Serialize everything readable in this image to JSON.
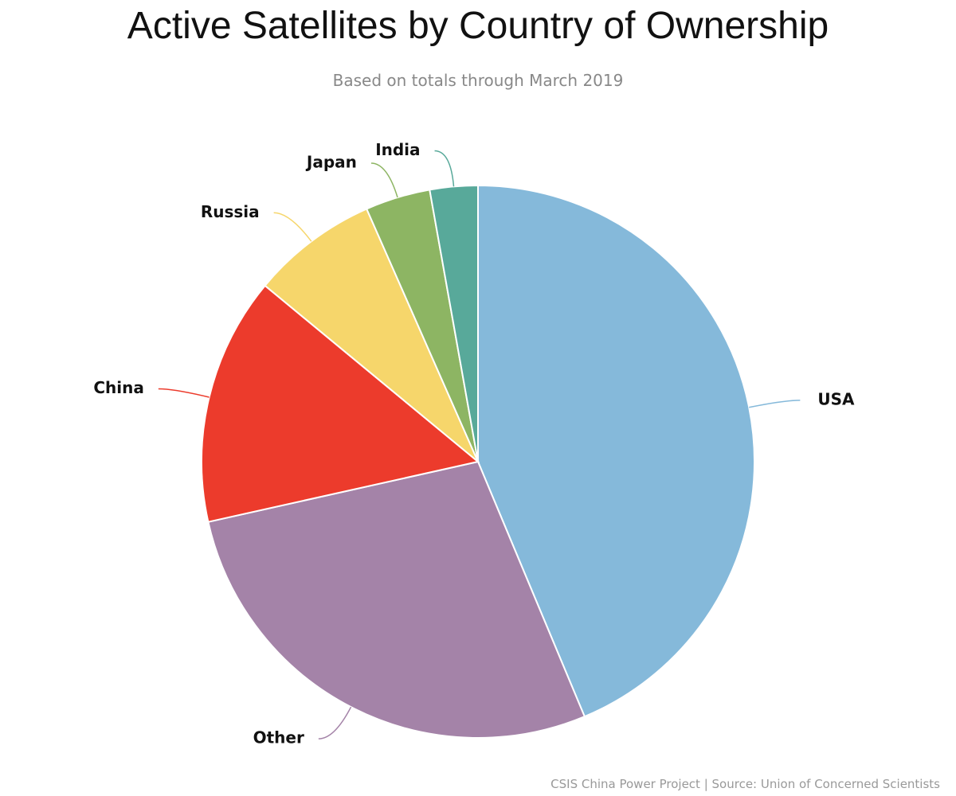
{
  "chart_data": {
    "type": "pie",
    "title": "Active Satellites by Country of Ownership",
    "subtitle": "Based on totals through March 2019",
    "source": "CSIS China Power Project | Source: Union of Concerned Scientists",
    "categories": [
      "USA",
      "Other",
      "China",
      "Russia",
      "Japan",
      "India"
    ],
    "values": [
      43.7,
      27.8,
      14.5,
      7.4,
      3.8,
      2.8
    ],
    "colors": [
      "#85b9da",
      "#a483a8",
      "#ec3b2c",
      "#f6d66b",
      "#8db563",
      "#58a99a"
    ]
  }
}
